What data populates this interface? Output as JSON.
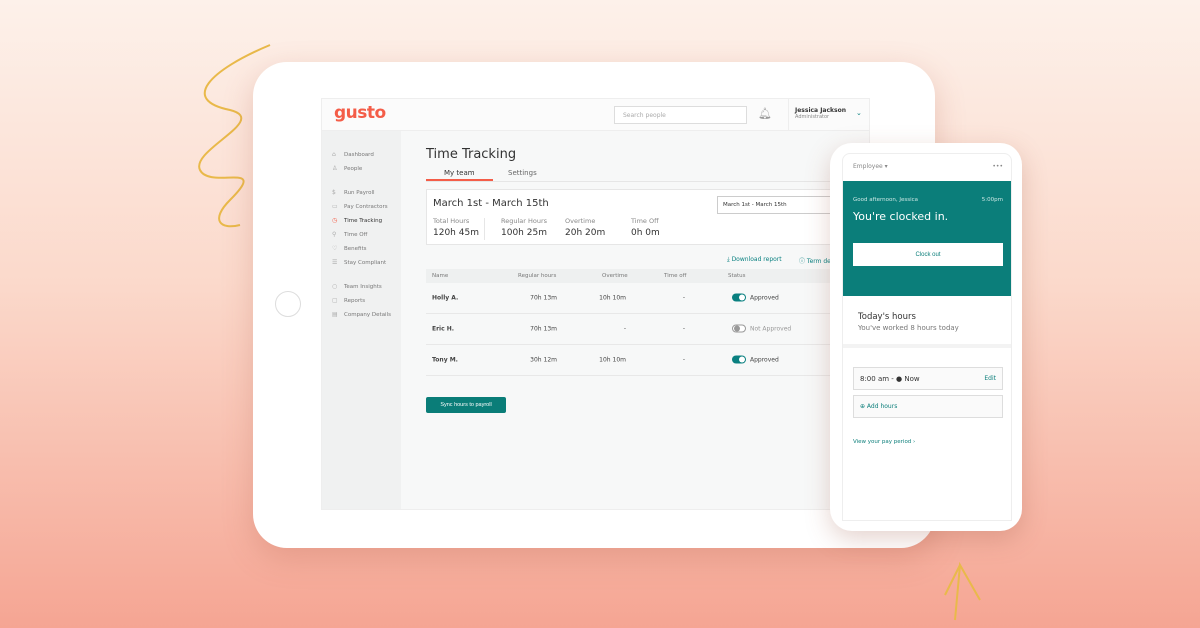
{
  "app": {
    "logo": "gusto",
    "search_placeholder": "Search people",
    "user_name": "Jessica Jackson",
    "user_role": "Administrator"
  },
  "sidebar": {
    "items": [
      {
        "label": "Dashboard",
        "icon": "home-icon"
      },
      {
        "label": "People",
        "icon": "person-icon"
      },
      {
        "label": "Run Payroll",
        "icon": "dollar-icon"
      },
      {
        "label": "Pay Contractors",
        "icon": "card-icon"
      },
      {
        "label": "Time Tracking",
        "icon": "clock-icon",
        "active": true
      },
      {
        "label": "Time Off",
        "icon": "palm-icon"
      },
      {
        "label": "Benefits",
        "icon": "heart-icon"
      },
      {
        "label": "Stay Compliant",
        "icon": "list-icon"
      },
      {
        "label": "Team Insights",
        "icon": "chat-icon"
      },
      {
        "label": "Reports",
        "icon": "report-icon"
      },
      {
        "label": "Company Details",
        "icon": "building-icon"
      }
    ]
  },
  "main": {
    "title": "Time Tracking",
    "tabs": [
      "My team",
      "Settings"
    ],
    "period": "March 1st - March 15th",
    "date_select": "March 1st - March 15th",
    "stats": [
      {
        "label": "Total Hours",
        "value": "120h 45m"
      },
      {
        "label": "Regular Hours",
        "value": "100h 25m"
      },
      {
        "label": "Overtime",
        "value": "20h 20m"
      },
      {
        "label": "Time Off",
        "value": "0h 0m"
      }
    ],
    "download": "Download report",
    "terms": "Term de",
    "columns": [
      "Name",
      "Regular hours",
      "Overtime",
      "Time off",
      "Status"
    ],
    "rows": [
      {
        "name": "Holly A.",
        "regular": "70h 13m",
        "overtime": "10h 10m",
        "timeoff": "-",
        "status": "Approved",
        "approved": true
      },
      {
        "name": "Eric H.",
        "regular": "70h 13m",
        "overtime": "-",
        "timeoff": "-",
        "status": "Not Approved",
        "approved": false
      },
      {
        "name": "Tony M.",
        "regular": "30h 12m",
        "overtime": "10h 10m",
        "timeoff": "-",
        "status": "Approved",
        "approved": true
      }
    ],
    "sync": "Sync hours to payroll"
  },
  "phone": {
    "role": "Employee",
    "menu": "•••",
    "greeting": "Good afternoon, Jessica",
    "time": "5:00pm",
    "status": "You're clocked in.",
    "clock_out": "Clock out",
    "today_title": "Today's hours",
    "today_sub": "You've worked 8 hours today",
    "entry": "8:00 am - ● Now",
    "edit": "Edit",
    "add": "⊕ Add hours",
    "pay_period": "View your pay period ›"
  },
  "colors": {
    "brand": "#f45d48",
    "teal": "#0b7e7a"
  }
}
